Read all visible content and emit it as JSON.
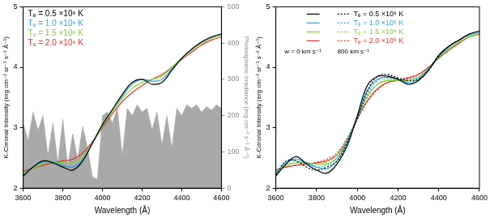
{
  "chart_data": [
    {
      "type": "line",
      "x_label": "Wavelength (Å)",
      "y_label": "K-Coronal Intensity (erg cm⁻² sr⁻¹ s⁻¹ Å⁻¹)",
      "y2_label": "Photospheric Irradiance (erg cm⁻² s⁻¹ Å⁻¹)",
      "x": [
        3600,
        3650,
        3700,
        3750,
        3800,
        3850,
        3900,
        3950,
        4000,
        4050,
        4100,
        4150,
        4200,
        4250,
        4300,
        4350,
        4400,
        4450,
        4500,
        4550,
        4600
      ],
      "xlim": [
        3600,
        4600
      ],
      "xticks": [
        3600,
        3800,
        4000,
        4200,
        4400,
        4600
      ],
      "ylim": [
        2,
        5
      ],
      "yticks": [
        2,
        3,
        4,
        5
      ],
      "y2lim": [
        0,
        500
      ],
      "y2ticks": [
        0,
        100,
        200,
        300,
        400,
        500
      ],
      "grid": false,
      "legend": "upper left",
      "series": [
        {
          "type": "area",
          "axis": "y2",
          "color": "#a9a9a9",
          "x": [
            3600,
            3625,
            3650,
            3675,
            3700,
            3725,
            3750,
            3775,
            3800,
            3825,
            3850,
            3875,
            3900,
            3925,
            3950,
            3975,
            4000,
            4025,
            4050,
            4075,
            4100,
            4125,
            4150,
            4175,
            4200,
            4225,
            4250,
            4275,
            4300,
            4325,
            4350,
            4375,
            4400,
            4425,
            4450,
            4475,
            4500,
            4525,
            4550,
            4575,
            4600
          ],
          "values": [
            180,
            130,
            210,
            160,
            200,
            90,
            180,
            70,
            190,
            60,
            150,
            80,
            170,
            110,
            30,
            25,
            200,
            210,
            180,
            220,
            90,
            220,
            200,
            230,
            210,
            220,
            160,
            210,
            120,
            200,
            110,
            220,
            200,
            230,
            220,
            230,
            210,
            225,
            215,
            230,
            220
          ]
        },
        {
          "name": "Tₑ = 0.5 ×10⁶ K",
          "color": "#000000",
          "values": [
            2.2,
            2.35,
            2.45,
            2.42,
            2.35,
            2.3,
            2.45,
            2.75,
            3.05,
            3.3,
            3.55,
            3.75,
            3.8,
            3.72,
            3.75,
            3.95,
            4.15,
            4.3,
            4.42,
            4.5,
            4.55
          ]
        },
        {
          "name": "Tₑ = 1.0 ×10⁶ K",
          "color": "#2aa7e0",
          "values": [
            2.22,
            2.35,
            2.43,
            2.43,
            2.38,
            2.35,
            2.47,
            2.75,
            3.05,
            3.3,
            3.52,
            3.72,
            3.8,
            3.77,
            3.8,
            3.97,
            4.15,
            4.3,
            4.42,
            4.5,
            4.55
          ]
        },
        {
          "name": "Tₑ = 1.5 ×10⁶ K",
          "color": "#7fd32a",
          "values": [
            2.25,
            2.33,
            2.4,
            2.43,
            2.42,
            2.42,
            2.52,
            2.75,
            3.02,
            3.27,
            3.48,
            3.65,
            3.75,
            3.8,
            3.85,
            4.0,
            4.15,
            4.28,
            4.4,
            4.48,
            4.53
          ]
        },
        {
          "name": "Tₑ = 2.0 ×10⁶ K",
          "color": "#e8302a",
          "values": [
            2.28,
            2.33,
            2.38,
            2.42,
            2.45,
            2.48,
            2.58,
            2.77,
            3.0,
            3.23,
            3.43,
            3.58,
            3.7,
            3.8,
            3.88,
            4.0,
            4.13,
            4.25,
            4.37,
            4.45,
            4.5
          ]
        }
      ]
    },
    {
      "type": "line",
      "x_label": "Wavelength (Å)",
      "y_label": "K-Coronal Intensity (erg cm⁻² sr⁻¹ s⁻¹ Å⁻¹)",
      "x": [
        3600,
        3650,
        3700,
        3750,
        3800,
        3850,
        3900,
        3950,
        4000,
        4050,
        4100,
        4150,
        4200,
        4250,
        4300,
        4350,
        4400,
        4450,
        4500,
        4550,
        4600
      ],
      "xlim": [
        3600,
        4600
      ],
      "xticks": [
        3600,
        3800,
        4000,
        4200,
        4400,
        4600
      ],
      "ylim": [
        2,
        5
      ],
      "yticks": [
        2,
        3,
        4,
        5
      ],
      "grid": false,
      "legend": "upper left",
      "line_style_labels": {
        "solid": "w = 0 km s⁻¹",
        "dotted": "800 km s⁻¹"
      },
      "series": [
        {
          "name": "Tₑ = 0.5 ×10⁶ K",
          "color": "#000000",
          "line_style": "solid",
          "values": [
            2.2,
            2.4,
            2.52,
            2.4,
            2.3,
            2.25,
            2.4,
            2.7,
            3.2,
            3.7,
            3.85,
            3.85,
            3.8,
            3.72,
            3.78,
            3.95,
            4.2,
            4.35,
            4.45,
            4.55,
            4.6
          ]
        },
        {
          "name": "Tₑ = 0.5 ×10⁶ K",
          "color": "#000000",
          "line_style": "dotted",
          "values": [
            2.22,
            2.45,
            2.45,
            2.35,
            2.3,
            2.35,
            2.45,
            2.75,
            3.15,
            3.6,
            3.85,
            3.88,
            3.82,
            3.78,
            3.8,
            3.95,
            4.18,
            4.35,
            4.45,
            4.55,
            4.6
          ]
        },
        {
          "name": "Tₑ = 1.0 ×10⁶ K",
          "color": "#2aa7e0",
          "line_style": "solid",
          "values": [
            2.22,
            2.42,
            2.48,
            2.42,
            2.35,
            2.32,
            2.45,
            2.75,
            3.18,
            3.62,
            3.8,
            3.83,
            3.8,
            3.75,
            3.8,
            3.97,
            4.18,
            4.33,
            4.45,
            4.53,
            4.58
          ]
        },
        {
          "name": "Tₑ = 1.0 ×10⁶ K",
          "color": "#2aa7e0",
          "line_style": "dotted",
          "values": [
            2.24,
            2.43,
            2.45,
            2.4,
            2.35,
            2.38,
            2.5,
            2.8,
            3.17,
            3.55,
            3.78,
            3.85,
            3.82,
            3.8,
            3.83,
            3.97,
            4.17,
            4.33,
            4.45,
            4.53,
            4.58
          ]
        },
        {
          "name": "Tₑ = 1.5 ×10⁶ K",
          "color": "#7fd32a",
          "line_style": "solid",
          "values": [
            2.25,
            2.38,
            2.42,
            2.42,
            2.4,
            2.4,
            2.5,
            2.78,
            3.16,
            3.52,
            3.72,
            3.78,
            3.78,
            3.78,
            3.83,
            3.98,
            4.16,
            4.3,
            4.42,
            4.5,
            4.56
          ]
        },
        {
          "name": "Tₑ = 1.5 ×10⁶ K",
          "color": "#7fd32a",
          "line_style": "dotted",
          "values": [
            2.27,
            2.38,
            2.42,
            2.42,
            2.4,
            2.43,
            2.55,
            2.82,
            3.15,
            3.5,
            3.72,
            3.8,
            3.8,
            3.8,
            3.85,
            3.98,
            4.15,
            4.3,
            4.42,
            4.5,
            4.56
          ]
        },
        {
          "name": "Tₑ = 2.0 ×10⁶ K",
          "color": "#e8302a",
          "line_style": "solid",
          "values": [
            2.3,
            2.35,
            2.38,
            2.4,
            2.42,
            2.45,
            2.55,
            2.8,
            3.15,
            3.45,
            3.65,
            3.75,
            3.78,
            3.82,
            3.88,
            4.0,
            4.15,
            4.28,
            4.4,
            4.5,
            4.55
          ]
        },
        {
          "name": "Tₑ = 2.0 ×10⁶ K",
          "color": "#e8302a",
          "line_style": "dotted",
          "values": [
            2.3,
            2.35,
            2.38,
            2.4,
            2.43,
            2.48,
            2.58,
            2.83,
            3.14,
            3.43,
            3.63,
            3.75,
            3.8,
            3.83,
            3.88,
            4.0,
            4.15,
            4.28,
            4.4,
            4.5,
            4.55
          ]
        }
      ]
    }
  ]
}
